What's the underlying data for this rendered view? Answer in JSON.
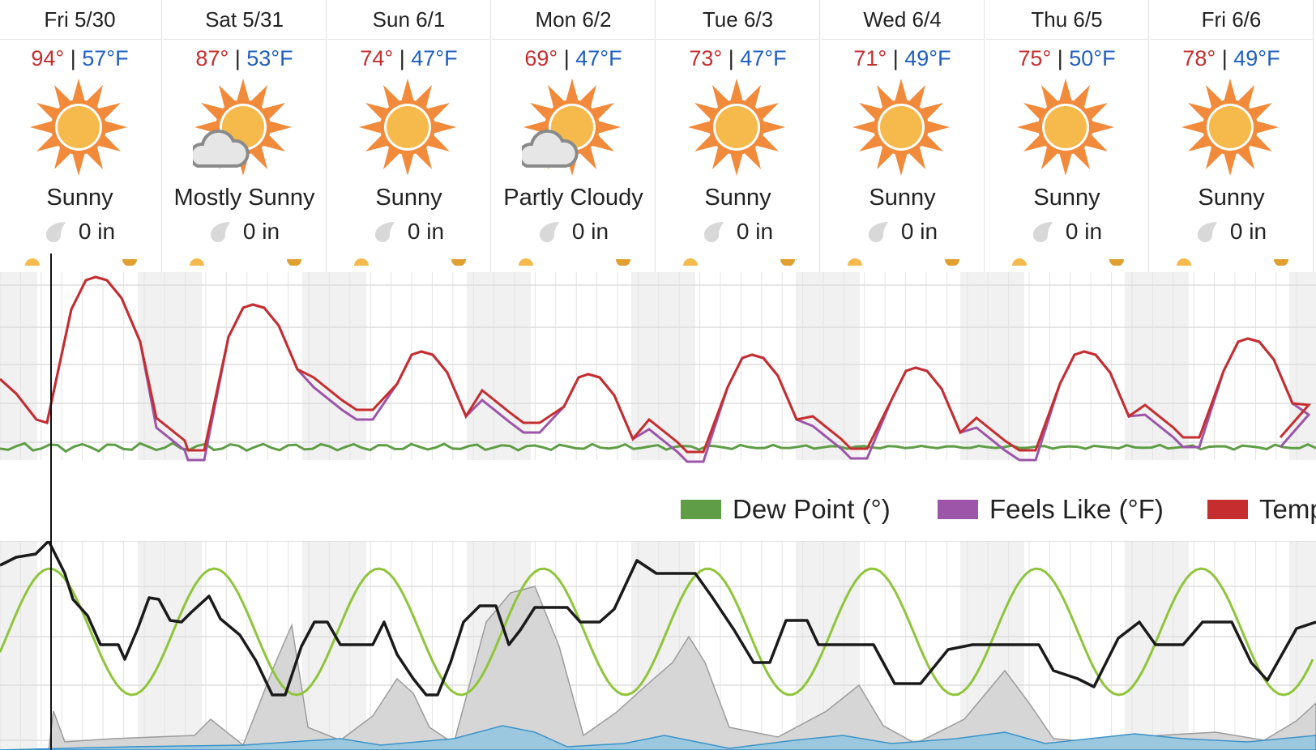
{
  "days": [
    {
      "label": "Fri 5/30",
      "hi": "94°",
      "lo": "57°F",
      "condition": "Sunny",
      "icon": "sun-icon",
      "precip": "0 in"
    },
    {
      "label": "Sat 5/31",
      "hi": "87°",
      "lo": "53°F",
      "condition": "Mostly Sunny",
      "icon": "mostly-sunny-icon",
      "precip": "0 in"
    },
    {
      "label": "Sun 6/1",
      "hi": "74°",
      "lo": "47°F",
      "condition": "Sunny",
      "icon": "sun-icon",
      "precip": "0 in"
    },
    {
      "label": "Mon 6/2",
      "hi": "69°",
      "lo": "47°F",
      "condition": "Partly Cloudy",
      "icon": "partly-cloudy-icon",
      "precip": "0 in"
    },
    {
      "label": "Tue 6/3",
      "hi": "73°",
      "lo": "47°F",
      "condition": "Sunny",
      "icon": "sun-icon",
      "precip": "0 in"
    },
    {
      "label": "Wed 6/4",
      "hi": "71°",
      "lo": "49°F",
      "condition": "Sunny",
      "icon": "sun-icon",
      "precip": "0 in"
    },
    {
      "label": "Thu 6/5",
      "hi": "75°",
      "lo": "50°F",
      "condition": "Sunny",
      "icon": "sun-icon",
      "precip": "0 in"
    },
    {
      "label": "Fri 6/6",
      "hi": "78°",
      "lo": "49°F",
      "condition": "Sunny",
      "icon": "sun-icon",
      "precip": "0 in"
    }
  ],
  "legend": [
    {
      "label": "Dew Point (°)",
      "color": "#5f9e47"
    },
    {
      "label": "Feels Like (°F)",
      "color": "#9c55a9"
    },
    {
      "label": "Temp",
      "color": "#c62d2f"
    }
  ],
  "colors": {
    "temp": "#c62d2f",
    "feels": "#9c55a9",
    "dew": "#5f9e47",
    "humidity": "#8fc53a",
    "wind": "#1a1a1a",
    "cloud_fill": "#d6d6d6",
    "rain_fill": "#9cc8df"
  },
  "chart_data": [
    {
      "type": "line",
      "series": [
        {
          "name": "Dew Point (°)"
        },
        {
          "name": "Feels Like (°F)"
        },
        {
          "name": "Temp"
        }
      ],
      "grid": true,
      "legend": "below"
    },
    {
      "type": "area",
      "grid": true
    }
  ]
}
